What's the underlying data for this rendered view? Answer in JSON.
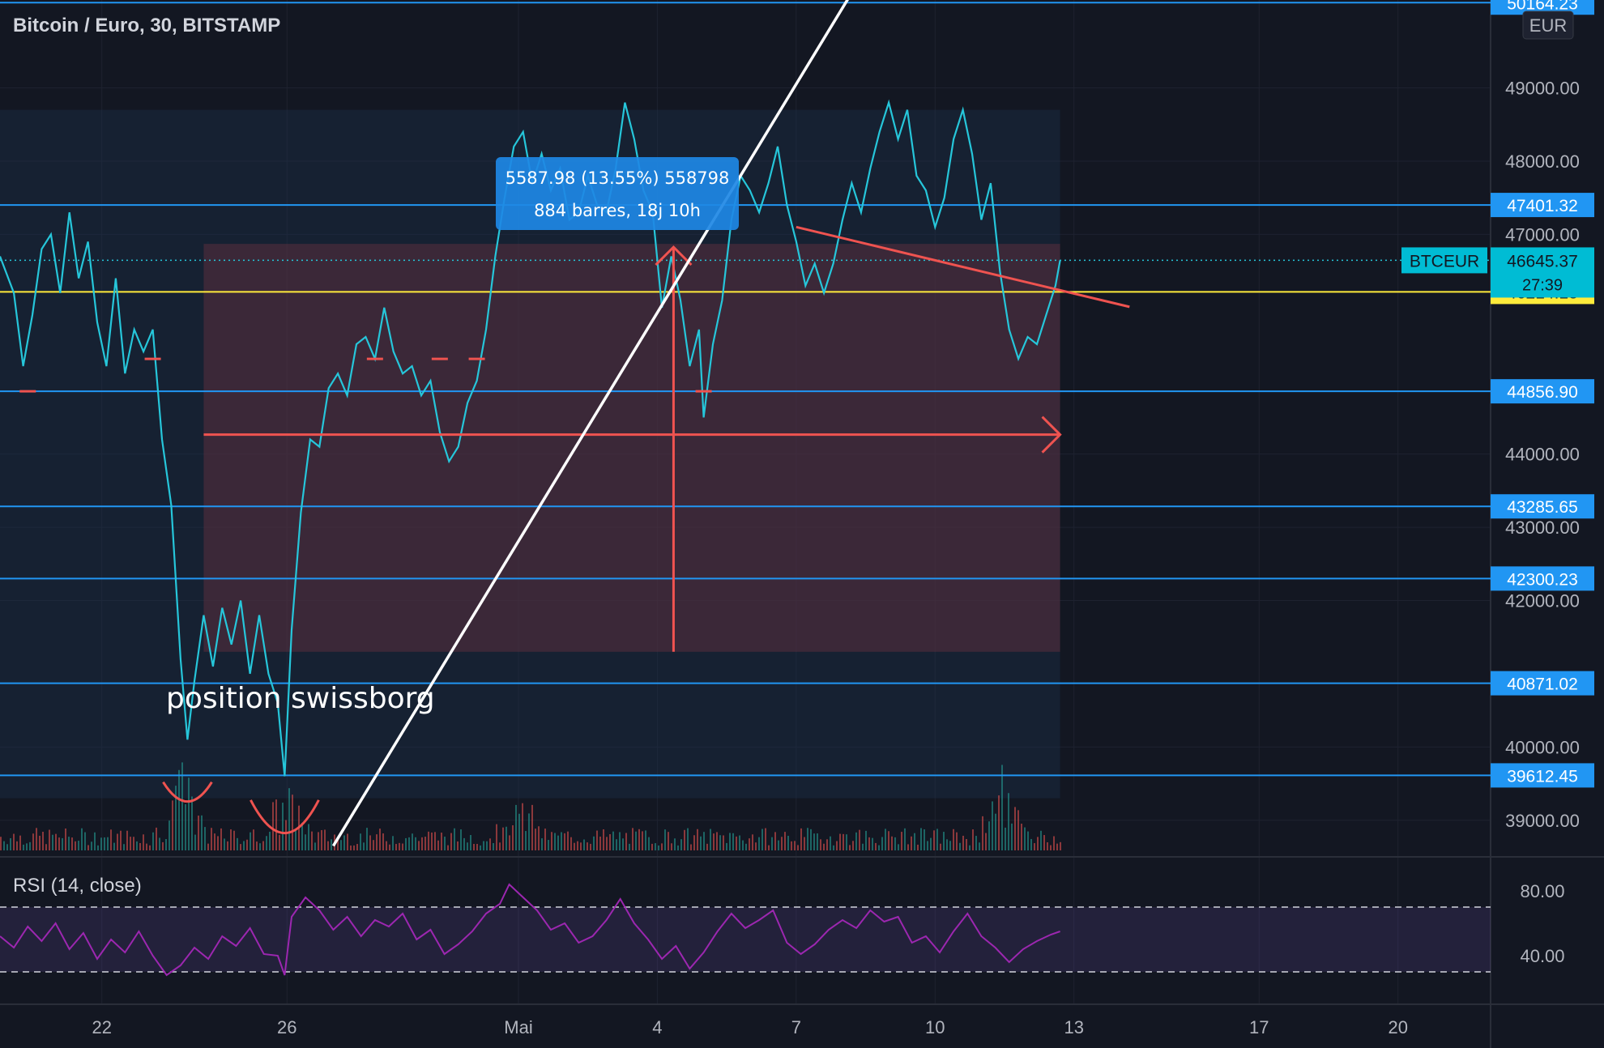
{
  "header": {
    "symbol_title": "Bitcoin / Euro, 30, BITSTAMP",
    "currency": "EUR"
  },
  "colors": {
    "background": "#131722",
    "grid": "#1e2230",
    "price_line": "#26c6da",
    "hline": "#2196f3",
    "yellow_line": "#ffeb3b",
    "trend_white": "#ffffff",
    "drawing_red": "#ef5350",
    "rsi": "#9c27b0",
    "volume_up": "#26a69a",
    "volume_down": "#ef5350"
  },
  "chart_data": [
    {
      "type": "line",
      "title": "Bitcoin / Euro, 30, BITSTAMP",
      "x_axis_labels": [
        "22",
        "26",
        "Mai",
        "4",
        "7",
        "10",
        "13",
        "17",
        "20"
      ],
      "x_axis_days": [
        -9,
        -5,
        0,
        3,
        6,
        9,
        12,
        16,
        19
      ],
      "x_axis_note": "days relative to Mai 1",
      "y_tick_labels": [
        "49000.00",
        "48000.00",
        "47000.00",
        "44000.00",
        "43000.00",
        "42000.00",
        "40000.00",
        "39000.00"
      ],
      "y_tick_values": [
        49000,
        48000,
        47000,
        44000,
        43000,
        42000,
        40000,
        39000
      ],
      "ylim": [
        38500,
        50200
      ],
      "xlim": [
        -11.2,
        21.0
      ],
      "series": [
        {
          "name": "BTCEUR",
          "points": [
            [
              -11.2,
              46700
            ],
            [
              -10.9,
              46200
            ],
            [
              -10.7,
              45200
            ],
            [
              -10.5,
              45900
            ],
            [
              -10.3,
              46800
            ],
            [
              -10.1,
              47000
            ],
            [
              -9.9,
              46200
            ],
            [
              -9.7,
              47300
            ],
            [
              -9.5,
              46400
            ],
            [
              -9.3,
              46900
            ],
            [
              -9.1,
              45800
            ],
            [
              -8.9,
              45200
            ],
            [
              -8.7,
              46400
            ],
            [
              -8.5,
              45100
            ],
            [
              -8.3,
              45700
            ],
            [
              -8.1,
              45400
            ],
            [
              -7.9,
              45700
            ],
            [
              -7.7,
              44200
            ],
            [
              -7.5,
              43300
            ],
            [
              -7.3,
              41200
            ],
            [
              -7.15,
              40100
            ],
            [
              -7.0,
              40900
            ],
            [
              -6.8,
              41800
            ],
            [
              -6.6,
              41100
            ],
            [
              -6.4,
              41900
            ],
            [
              -6.2,
              41400
            ],
            [
              -6.0,
              42000
            ],
            [
              -5.8,
              41000
            ],
            [
              -5.6,
              41800
            ],
            [
              -5.4,
              41000
            ],
            [
              -5.2,
              40600
            ],
            [
              -5.05,
              39600
            ],
            [
              -4.9,
              41600
            ],
            [
              -4.7,
              43200
            ],
            [
              -4.5,
              44200
            ],
            [
              -4.3,
              44100
            ],
            [
              -4.1,
              44900
            ],
            [
              -3.9,
              45100
            ],
            [
              -3.7,
              44800
            ],
            [
              -3.5,
              45500
            ],
            [
              -3.3,
              45600
            ],
            [
              -3.1,
              45300
            ],
            [
              -2.9,
              46000
            ],
            [
              -2.7,
              45400
            ],
            [
              -2.5,
              45100
            ],
            [
              -2.3,
              45200
            ],
            [
              -2.1,
              44800
            ],
            [
              -1.9,
              45000
            ],
            [
              -1.7,
              44300
            ],
            [
              -1.5,
              43900
            ],
            [
              -1.3,
              44100
            ],
            [
              -1.1,
              44700
            ],
            [
              -0.9,
              45000
            ],
            [
              -0.7,
              45700
            ],
            [
              -0.5,
              46700
            ],
            [
              -0.3,
              47500
            ],
            [
              -0.1,
              48200
            ],
            [
              0.1,
              48400
            ],
            [
              0.3,
              47700
            ],
            [
              0.5,
              48100
            ],
            [
              0.7,
              47600
            ],
            [
              0.9,
              47900
            ],
            [
              1.1,
              47200
            ],
            [
              1.3,
              47300
            ],
            [
              1.5,
              47800
            ],
            [
              1.7,
              47400
            ],
            [
              1.9,
              47300
            ],
            [
              2.1,
              47900
            ],
            [
              2.3,
              48800
            ],
            [
              2.5,
              48300
            ],
            [
              2.7,
              47600
            ],
            [
              2.9,
              47300
            ],
            [
              3.1,
              46000
            ],
            [
              3.3,
              46700
            ],
            [
              3.5,
              46100
            ],
            [
              3.7,
              45200
            ],
            [
              3.9,
              45700
            ],
            [
              4.0,
              44500
            ],
            [
              4.2,
              45500
            ],
            [
              4.4,
              46100
            ],
            [
              4.6,
              47200
            ],
            [
              4.8,
              47800
            ],
            [
              5.0,
              47600
            ],
            [
              5.2,
              47300
            ],
            [
              5.4,
              47700
            ],
            [
              5.6,
              48200
            ],
            [
              5.8,
              47400
            ],
            [
              6.0,
              46900
            ],
            [
              6.2,
              46300
            ],
            [
              6.4,
              46600
            ],
            [
              6.6,
              46200
            ],
            [
              6.8,
              46600
            ],
            [
              7.0,
              47200
            ],
            [
              7.2,
              47700
            ],
            [
              7.4,
              47300
            ],
            [
              7.6,
              47900
            ],
            [
              7.8,
              48400
            ],
            [
              8.0,
              48800
            ],
            [
              8.2,
              48300
            ],
            [
              8.4,
              48700
            ],
            [
              8.6,
              47800
            ],
            [
              8.8,
              47600
            ],
            [
              9.0,
              47100
            ],
            [
              9.2,
              47500
            ],
            [
              9.4,
              48300
            ],
            [
              9.6,
              48700
            ],
            [
              9.8,
              48100
            ],
            [
              10.0,
              47200
            ],
            [
              10.2,
              47700
            ],
            [
              10.4,
              46500
            ],
            [
              10.6,
              45700
            ],
            [
              10.8,
              45300
            ],
            [
              11.0,
              45600
            ],
            [
              11.2,
              45500
            ],
            [
              11.4,
              45900
            ],
            [
              11.6,
              46300
            ],
            [
              11.7,
              46645
            ]
          ]
        }
      ],
      "horizontal_levels": [
        {
          "value": 50164.23,
          "label": "50164.23"
        },
        {
          "value": 47401.32,
          "label": "47401.32"
        },
        {
          "value": 44856.9,
          "label": "44856.90"
        },
        {
          "value": 43285.65,
          "label": "43285.65"
        },
        {
          "value": 42300.23,
          "label": "42300.23"
        },
        {
          "value": 40871.02,
          "label": "40871.02"
        },
        {
          "value": 39612.45,
          "label": "39612.45"
        }
      ],
      "yellow_level": {
        "value": 46214.18,
        "label": "46214.18"
      },
      "last_price": {
        "value": 46645.37,
        "label": "46645.37",
        "symbol": "BTCEUR",
        "countdown": "27:39"
      },
      "measure_tool": {
        "x_start": -6.8,
        "x_end": 11.7,
        "y_low": 41300,
        "y_high": 46870,
        "line1": "5587.98 (13.55%) 558798",
        "line2": "884 barres, 18j 10h"
      },
      "annotation_text": "position swissborg",
      "white_trendline": [
        [
          -4.0,
          38650
        ],
        [
          7.2,
          50300
        ]
      ],
      "red_trendline": [
        [
          6.0,
          47100
        ],
        [
          13.2,
          46010
        ]
      ]
    },
    {
      "type": "line",
      "title": "RSI (14, close)",
      "y_tick_labels": [
        "80.00",
        "40.00"
      ],
      "y_tick_values": [
        80,
        40
      ],
      "ylim": [
        10,
        100
      ],
      "bands": [
        30,
        70
      ],
      "series": [
        {
          "name": "RSI",
          "points": [
            [
              -11.2,
              52
            ],
            [
              -10.9,
              45
            ],
            [
              -10.6,
              58
            ],
            [
              -10.3,
              49
            ],
            [
              -10.0,
              60
            ],
            [
              -9.7,
              44
            ],
            [
              -9.4,
              54
            ],
            [
              -9.1,
              38
            ],
            [
              -8.8,
              50
            ],
            [
              -8.5,
              42
            ],
            [
              -8.2,
              55
            ],
            [
              -7.9,
              40
            ],
            [
              -7.6,
              28
            ],
            [
              -7.3,
              34
            ],
            [
              -7.0,
              45
            ],
            [
              -6.7,
              38
            ],
            [
              -6.4,
              52
            ],
            [
              -6.1,
              46
            ],
            [
              -5.8,
              57
            ],
            [
              -5.5,
              41
            ],
            [
              -5.2,
              40
            ],
            [
              -5.05,
              28
            ],
            [
              -4.9,
              64
            ],
            [
              -4.6,
              76
            ],
            [
              -4.3,
              68
            ],
            [
              -4.0,
              56
            ],
            [
              -3.7,
              64
            ],
            [
              -3.4,
              52
            ],
            [
              -3.1,
              62
            ],
            [
              -2.8,
              58
            ],
            [
              -2.5,
              66
            ],
            [
              -2.2,
              50
            ],
            [
              -1.9,
              56
            ],
            [
              -1.6,
              41
            ],
            [
              -1.3,
              47
            ],
            [
              -1.0,
              55
            ],
            [
              -0.7,
              66
            ],
            [
              -0.4,
              72
            ],
            [
              -0.2,
              84
            ],
            [
              0.1,
              76
            ],
            [
              0.4,
              68
            ],
            [
              0.7,
              56
            ],
            [
              1.0,
              60
            ],
            [
              1.3,
              48
            ],
            [
              1.6,
              52
            ],
            [
              1.9,
              62
            ],
            [
              2.2,
              75
            ],
            [
              2.5,
              60
            ],
            [
              2.8,
              50
            ],
            [
              3.1,
              38
            ],
            [
              3.4,
              46
            ],
            [
              3.7,
              32
            ],
            [
              4.0,
              42
            ],
            [
              4.3,
              55
            ],
            [
              4.6,
              66
            ],
            [
              4.9,
              57
            ],
            [
              5.2,
              62
            ],
            [
              5.5,
              68
            ],
            [
              5.8,
              48
            ],
            [
              6.1,
              41
            ],
            [
              6.4,
              47
            ],
            [
              6.7,
              56
            ],
            [
              7.0,
              62
            ],
            [
              7.3,
              57
            ],
            [
              7.6,
              68
            ],
            [
              7.9,
              61
            ],
            [
              8.2,
              64
            ],
            [
              8.5,
              48
            ],
            [
              8.8,
              52
            ],
            [
              9.1,
              42
            ],
            [
              9.4,
              55
            ],
            [
              9.7,
              66
            ],
            [
              10.0,
              52
            ],
            [
              10.3,
              45
            ],
            [
              10.6,
              36
            ],
            [
              10.9,
              44
            ],
            [
              11.2,
              49
            ],
            [
              11.5,
              53
            ],
            [
              11.7,
              55
            ]
          ]
        }
      ]
    }
  ],
  "volume": {
    "seed": 7,
    "peaks": [
      [
        -7.3,
        0.9
      ],
      [
        -5.0,
        0.7
      ],
      [
        0.0,
        0.55
      ],
      [
        10.4,
        0.85
      ]
    ]
  }
}
